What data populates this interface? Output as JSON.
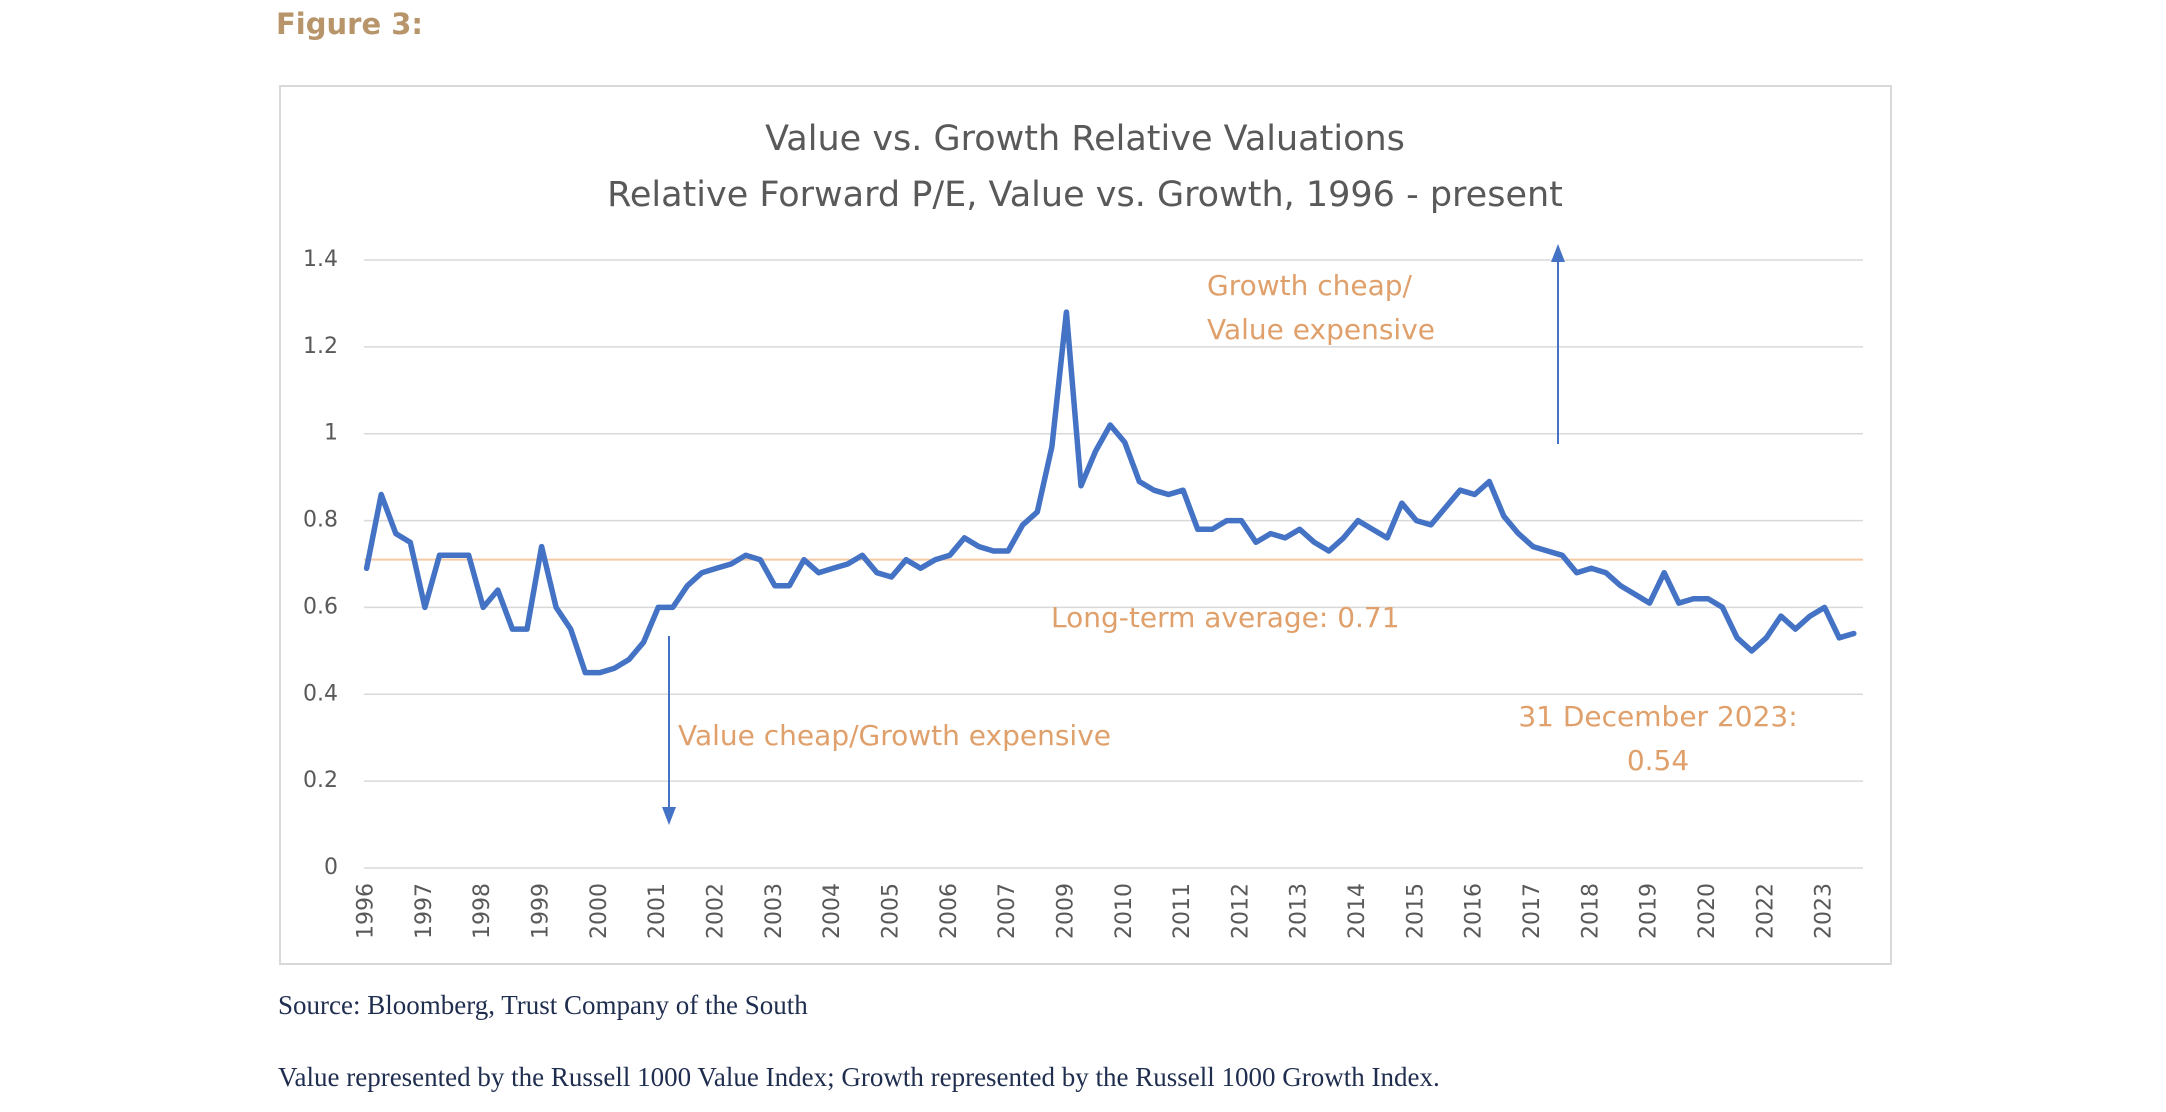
{
  "figure_label": "Figure 3:",
  "chart_data": {
    "type": "line",
    "title": "Value vs. Growth Relative Valuations",
    "subtitle": "Relative Forward P/E, Value vs. Growth, 1996 - present",
    "categories": [
      "1996",
      null,
      null,
      null,
      "1997",
      null,
      null,
      null,
      "1998",
      null,
      null,
      null,
      "1999",
      null,
      null,
      null,
      "2000",
      null,
      null,
      null,
      "2001",
      null,
      null,
      null,
      "2002",
      null,
      null,
      null,
      "2003",
      null,
      null,
      null,
      "2004",
      null,
      null,
      null,
      "2005",
      null,
      null,
      null,
      "2006",
      null,
      null,
      null,
      "2007",
      null,
      null,
      null,
      "2009",
      null,
      null,
      null,
      "2010",
      null,
      null,
      null,
      "2011",
      null,
      null,
      null,
      "2012",
      null,
      null,
      null,
      "2013",
      null,
      null,
      null,
      "2014",
      null,
      null,
      null,
      "2015",
      null,
      null,
      null,
      "2016",
      null,
      null,
      null,
      "2017",
      null,
      null,
      null,
      "2018",
      null,
      null,
      null,
      "2019",
      null,
      null,
      null,
      "2020",
      null,
      null,
      null,
      "2022",
      null,
      null,
      null,
      "2023",
      null,
      null
    ],
    "series": [
      {
        "color": "#4472c4",
        "values": [
          0.69,
          0.86,
          0.77,
          0.75,
          0.6,
          0.72,
          0.72,
          0.72,
          0.6,
          0.64,
          0.55,
          0.55,
          0.74,
          0.6,
          0.55,
          0.45,
          0.45,
          0.46,
          0.48,
          0.52,
          0.6,
          0.6,
          0.65,
          0.68,
          0.69,
          0.7,
          0.72,
          0.71,
          0.65,
          0.65,
          0.71,
          0.68,
          0.69,
          0.7,
          0.72,
          0.68,
          0.67,
          0.71,
          0.69,
          0.71,
          0.72,
          0.76,
          0.74,
          0.73,
          0.73,
          0.79,
          0.82,
          0.97,
          1.28,
          0.88,
          0.96,
          1.02,
          0.98,
          0.89,
          0.87,
          0.86,
          0.87,
          0.78,
          0.78,
          0.8,
          0.8,
          0.75,
          0.77,
          0.76,
          0.78,
          0.75,
          0.73,
          0.76,
          0.8,
          0.78,
          0.76,
          0.84,
          0.8,
          0.79,
          0.83,
          0.87,
          0.86,
          0.89,
          0.81,
          0.77,
          0.74,
          0.73,
          0.72,
          0.68,
          0.69,
          0.68,
          0.65,
          0.63,
          0.61,
          0.68,
          0.61,
          0.62,
          0.62,
          0.6,
          0.53,
          0.5,
          0.53,
          0.58,
          0.55,
          0.58,
          0.6,
          0.53,
          0.54
        ]
      }
    ],
    "average": 0.71,
    "average_color": "#f4c9a3",
    "ylim": [
      0,
      1.4
    ],
    "yticks": [
      0,
      0.2,
      0.4,
      0.6,
      0.8,
      1,
      1.2,
      1.4
    ],
    "grid": true,
    "annotations": {
      "growth_cheap": [
        "Growth cheap/",
        "Value expensive"
      ],
      "average_label": "Long-term average: 0.71",
      "value_cheap": "Value cheap/Growth expensive",
      "latest": [
        "31 December 2023:",
        "0.54"
      ]
    }
  },
  "source": "Source: Bloomberg, Trust Company of the South",
  "note": "Value represented by the Russell 1000 Value Index; Growth represented by the Russell 1000 Growth Index."
}
